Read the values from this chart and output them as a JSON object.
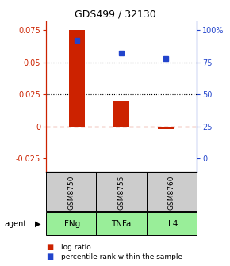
{
  "title": "GDS499 / 32130",
  "samples": [
    "GSM8750",
    "GSM8755",
    "GSM8760"
  ],
  "agents": [
    "IFNg",
    "TNFa",
    "IL4"
  ],
  "log_ratios": [
    0.075,
    0.02,
    -0.002
  ],
  "percentile_ranks": [
    92,
    82,
    78
  ],
  "bar_color": "#cc2200",
  "dot_color": "#2244cc",
  "ylim_left": [
    -0.035,
    0.082
  ],
  "yticks_left": [
    -0.025,
    0,
    0.025,
    0.05,
    0.075
  ],
  "yticks_right": [
    0,
    25,
    50,
    75,
    100
  ],
  "left_axis_color": "#cc2200",
  "right_axis_color": "#2244cc",
  "zero_line_color": "#cc2200",
  "agent_bg_color": "#99ee99",
  "sample_bg_color": "#cccccc",
  "bar_width": 0.35,
  "legend_log_label": "log ratio",
  "legend_pct_label": "percentile rank within the sample"
}
